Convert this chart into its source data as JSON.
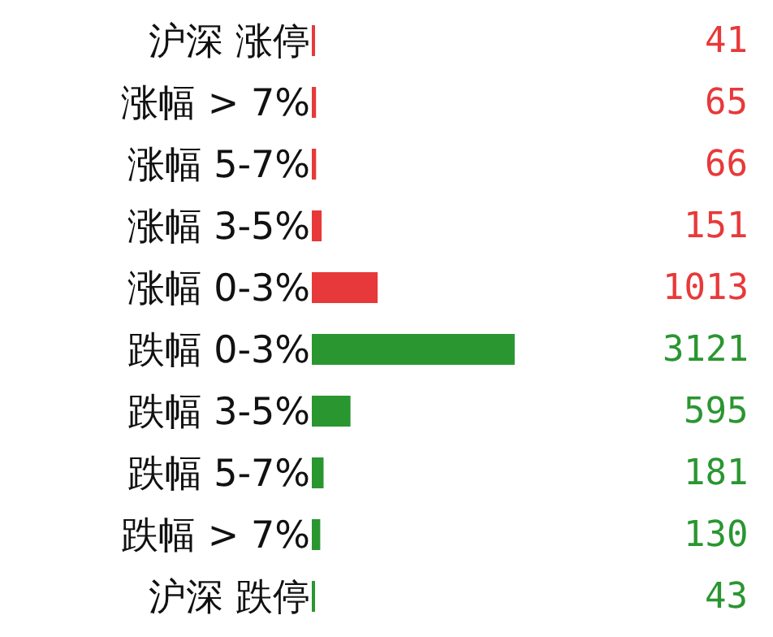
{
  "chart_data": {
    "type": "bar",
    "orientation": "horizontal",
    "categories": [
      "沪深 涨停",
      "涨幅 > 7%",
      "涨幅 5-7%",
      "涨幅 3-5%",
      "涨幅 0-3%",
      "跌幅 0-3%",
      "跌幅 3-5%",
      "跌幅 5-7%",
      "跌幅 > 7%",
      "沪深 跌停"
    ],
    "values": [
      41,
      65,
      66,
      151,
      1013,
      3121,
      595,
      181,
      130,
      43
    ],
    "colors": [
      "#e8393a",
      "#e8393a",
      "#e8393a",
      "#e8393a",
      "#e8393a",
      "#2a9630",
      "#2a9630",
      "#2a9630",
      "#2a9630",
      "#2a9630"
    ],
    "data_labels": true
  }
}
